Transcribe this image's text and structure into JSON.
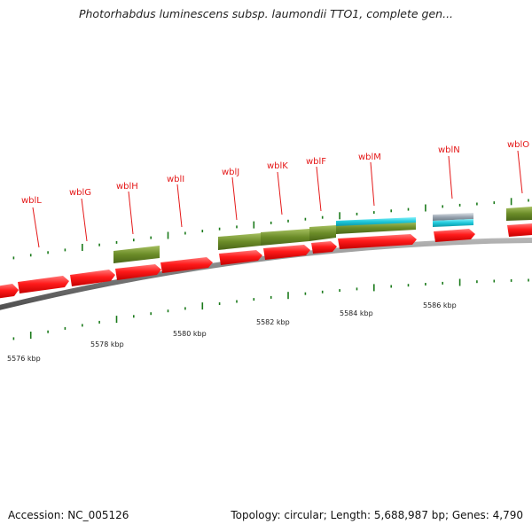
{
  "header": {
    "title": "Photorhabdus luminescens subsp. laumondii TTO1, complete gen..."
  },
  "footer": {
    "accession": "Accession: NC_005126",
    "summary": "Topology: circular; Length: 5,688,987 bp; Genes: 4,790"
  },
  "colors": {
    "label_red": "#e41818",
    "forward_gene": "#ff1414",
    "cds_olive": "#6a8a26",
    "cds_cyan": "#1ec7d9",
    "cds_grey": "#9aa6b2",
    "tick_green": "#1a7a1a",
    "backbone_grey": "#7c7c7c",
    "text": "#111111"
  },
  "genes": [
    {
      "name": "wblL"
    },
    {
      "name": "wblG"
    },
    {
      "name": "wblH"
    },
    {
      "name": "wblI"
    },
    {
      "name": "wblJ"
    },
    {
      "name": "wblK"
    },
    {
      "name": "wblF"
    },
    {
      "name": "wblM"
    },
    {
      "name": "wblN"
    },
    {
      "name": "wblO"
    }
  ],
  "scale": {
    "unit": "kbp",
    "marks": [
      {
        "label": "5576 kbp"
      },
      {
        "label": "5578 kbp"
      },
      {
        "label": "5580 kbp"
      },
      {
        "label": "5582 kbp"
      },
      {
        "label": "5584 kbp"
      },
      {
        "label": "5586 kbp"
      }
    ]
  }
}
